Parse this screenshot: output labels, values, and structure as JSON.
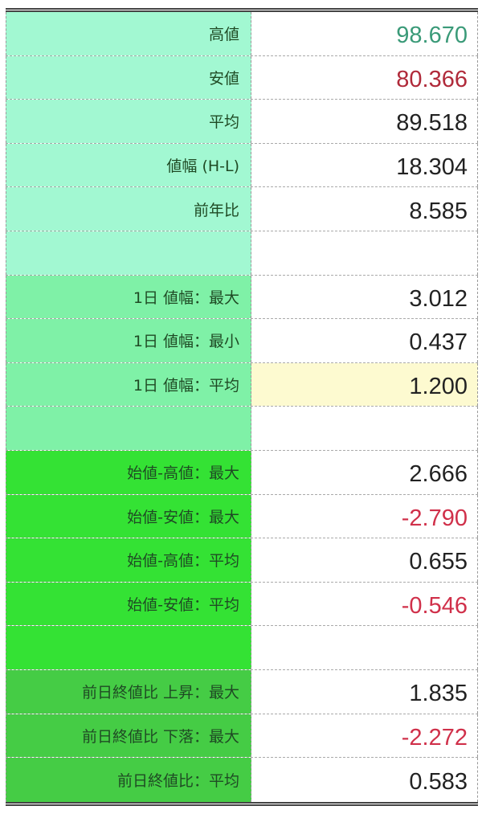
{
  "rows": [
    {
      "label": "高値",
      "value": "98.670",
      "color": "#3a9a78",
      "section": 1
    },
    {
      "label": "安値",
      "value": "80.366",
      "color": "#b02a3a",
      "section": 1
    },
    {
      "label": "平均",
      "value": "89.518",
      "section": 1
    },
    {
      "label": "値幅 (H-L)",
      "value": "18.304",
      "section": 1
    },
    {
      "label": "前年比",
      "value": "8.585",
      "section": 1
    },
    {
      "label": "",
      "value": "",
      "section": 1
    },
    {
      "label": "1日 値幅：最大",
      "value": "3.012",
      "section": 2
    },
    {
      "label": "1日 値幅：最小",
      "value": "0.437",
      "section": 2
    },
    {
      "label": "1日 値幅：平均",
      "value": "1.200",
      "section": 2,
      "highlight": "#fdfad0"
    },
    {
      "label": "",
      "value": "",
      "section": 2
    },
    {
      "label": "始値-高値：最大",
      "value": "2.666",
      "section": 3
    },
    {
      "label": "始値-安値：最大",
      "value": "-2.790",
      "color": "#d0304a",
      "section": 3
    },
    {
      "label": "始値-高値：平均",
      "value": "0.655",
      "section": 3
    },
    {
      "label": "始値-安値：平均",
      "value": "-0.546",
      "color": "#d0304a",
      "section": 3
    },
    {
      "label": "",
      "value": "",
      "section": 3
    },
    {
      "label": "前日終値比 上昇：最大",
      "value": "1.835",
      "section": 4
    },
    {
      "label": "前日終値比 下落：最大",
      "value": "-2.272",
      "color": "#d0304a",
      "section": 4
    },
    {
      "label": "前日終値比：平均",
      "value": "0.583",
      "section": 4
    }
  ]
}
